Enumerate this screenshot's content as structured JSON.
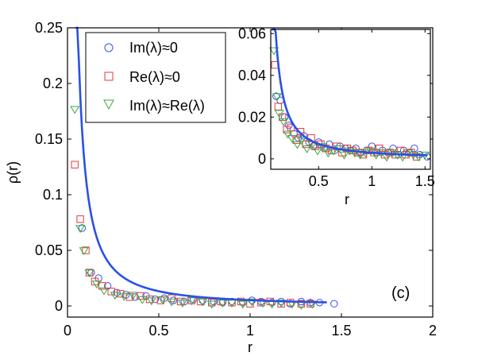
{
  "chart_data": [
    {
      "name": "main",
      "type": "scatter",
      "xlabel": "r",
      "ylabel": "ρ(r)",
      "xlim": [
        0,
        2
      ],
      "ylim": [
        -0.01,
        0.25
      ],
      "xticks": [
        0,
        0.5,
        1,
        1.5,
        2
      ],
      "xtick_labels": [
        "0",
        "0.5",
        "1",
        "1.5",
        "2"
      ],
      "yticks": [
        0,
        0.05,
        0.1,
        0.15,
        0.2,
        0.25
      ],
      "ytick_labels": [
        "0",
        "0.05",
        "0.1",
        "0.15",
        "0.2",
        "0.25"
      ],
      "annotation": "(c)",
      "fit_curve": {
        "name": "fit",
        "color": "#2b50e6",
        "coefficient": 0.0052,
        "exponent": 1.35,
        "x_range": [
          0.045,
          1.42
        ]
      },
      "series": [
        {
          "name": "Im(λ)≈0",
          "marker": "circle",
          "color": "#3a4df0",
          "x": [
            0.08,
            0.13,
            0.17,
            0.22,
            0.27,
            0.32,
            0.37,
            0.43,
            0.48,
            0.53,
            0.58,
            0.64,
            0.69,
            0.74,
            0.8,
            0.85,
            0.9,
            0.96,
            1.01,
            1.06,
            1.12,
            1.17,
            1.22,
            1.28,
            1.33,
            1.38,
            1.46
          ],
          "y": [
            0.07,
            0.03,
            0.025,
            0.018,
            0.012,
            0.01,
            0.008,
            0.009,
            0.006,
            0.007,
            0.005,
            0.004,
            0.006,
            0.005,
            0.004,
            0.003,
            0.004,
            0.003,
            0.005,
            0.004,
            0.003,
            0.004,
            0.002,
            0.004,
            0.003,
            0.003,
            0.002
          ]
        },
        {
          "name": "Re(λ)≈0",
          "marker": "square",
          "color": "#e63a3a",
          "x": [
            0.04,
            0.07,
            0.1,
            0.12,
            0.15,
            0.19,
            0.24,
            0.29,
            0.34,
            0.4,
            0.45,
            0.51,
            0.57,
            0.62,
            0.68,
            0.73,
            0.79,
            0.84,
            0.9,
            0.95,
            1.0,
            1.06,
            1.11,
            1.17,
            1.22,
            1.28,
            1.33
          ],
          "y": [
            0.127,
            0.078,
            0.05,
            0.03,
            0.022,
            0.018,
            0.013,
            0.011,
            0.008,
            0.009,
            0.006,
            0.005,
            0.007,
            0.004,
            0.005,
            0.004,
            0.003,
            0.004,
            0.003,
            0.004,
            0.002,
            0.003,
            0.004,
            0.002,
            0.003,
            0.002,
            0.002
          ]
        },
        {
          "name": "Im(λ)≈Re(λ)",
          "marker": "triangle-down",
          "color": "#3aaa3a",
          "x": [
            0.04,
            0.07,
            0.09,
            0.12,
            0.16,
            0.2,
            0.26,
            0.31,
            0.36,
            0.41,
            0.46,
            0.52,
            0.57,
            0.63,
            0.68,
            0.74,
            0.79,
            0.85,
            0.9,
            0.96,
            1.01,
            1.07,
            1.12,
            1.17,
            1.23,
            1.28,
            1.34
          ],
          "y": [
            0.177,
            0.07,
            0.05,
            0.03,
            0.02,
            0.014,
            0.01,
            0.009,
            0.01,
            0.006,
            0.005,
            0.006,
            0.004,
            0.003,
            0.005,
            0.004,
            0.002,
            0.003,
            0.003,
            0.002,
            0.004,
            0.003,
            0.002,
            0.003,
            0.002,
            0.001,
            0.002
          ]
        }
      ]
    },
    {
      "name": "inset",
      "type": "scatter",
      "xlabel": "r",
      "ylabel": "",
      "xlim": [
        0.05,
        1.55
      ],
      "ylim": [
        -0.005,
        0.062
      ],
      "xticks": [
        0.5,
        1,
        1.5
      ],
      "xtick_labels": [
        "0.5",
        "1",
        "1.5"
      ],
      "yticks": [
        0,
        0.02,
        0.04,
        0.06
      ],
      "ytick_labels": [
        "0",
        "0.02",
        "0.04",
        "0.06"
      ],
      "fit_curve": {
        "name": "fit",
        "color": "#2b50e6",
        "coefficient": 0.0029,
        "exponent": 1.3,
        "x_range": [
          0.06,
          1.52
        ]
      },
      "series": [
        {
          "name": "Im(λ)≈0",
          "marker": "circle",
          "color": "#3a4df0",
          "x": [
            0.1,
            0.14,
            0.18,
            0.22,
            0.27,
            0.31,
            0.36,
            0.41,
            0.45,
            0.5,
            0.55,
            0.6,
            0.65,
            0.7,
            0.75,
            0.8,
            0.85,
            0.9,
            0.95,
            1.0,
            1.05,
            1.1,
            1.15,
            1.2,
            1.25,
            1.3,
            1.35,
            1.4,
            1.45,
            1.52
          ],
          "y": [
            0.03,
            0.028,
            0.02,
            0.016,
            0.012,
            0.01,
            0.011,
            0.008,
            0.006,
            0.008,
            0.005,
            0.007,
            0.004,
            0.006,
            0.005,
            0.004,
            0.005,
            0.003,
            0.004,
            0.006,
            0.003,
            0.004,
            0.003,
            0.005,
            0.002,
            0.004,
            0.003,
            0.005,
            0.002,
            0.001
          ]
        },
        {
          "name": "Re(λ)≈0",
          "marker": "square",
          "color": "#e63a3a",
          "x": [
            0.09,
            0.12,
            0.16,
            0.2,
            0.24,
            0.29,
            0.33,
            0.38,
            0.43,
            0.47,
            0.52,
            0.57,
            0.62,
            0.67,
            0.72,
            0.77,
            0.82,
            0.87,
            0.92,
            0.97,
            1.02,
            1.07,
            1.12,
            1.17,
            1.22,
            1.27,
            1.32,
            1.37,
            1.42
          ],
          "y": [
            0.045,
            0.025,
            0.02,
            0.014,
            0.015,
            0.009,
            0.013,
            0.007,
            0.01,
            0.006,
            0.007,
            0.005,
            0.004,
            0.006,
            0.003,
            0.005,
            0.004,
            0.003,
            0.002,
            0.004,
            0.003,
            0.005,
            0.002,
            0.003,
            0.002,
            0.004,
            0.002,
            0.003,
            0.001
          ]
        },
        {
          "name": "Im(λ)≈Re(λ)",
          "marker": "triangle-down",
          "color": "#3aaa3a",
          "x": [
            0.08,
            0.11,
            0.13,
            0.17,
            0.21,
            0.25,
            0.3,
            0.34,
            0.39,
            0.44,
            0.49,
            0.54,
            0.59,
            0.64,
            0.69,
            0.74,
            0.79,
            0.84,
            0.89,
            0.94,
            0.99,
            1.04,
            1.09,
            1.14,
            1.19,
            1.24,
            1.29,
            1.34,
            1.39,
            1.44,
            1.5
          ],
          "y": [
            0.052,
            0.03,
            0.022,
            0.018,
            0.012,
            0.01,
            0.007,
            0.009,
            0.005,
            0.007,
            0.004,
            0.006,
            0.003,
            0.004,
            0.005,
            0.002,
            0.004,
            0.003,
            0.002,
            0.003,
            0.004,
            0.002,
            0.003,
            0.001,
            0.003,
            0.002,
            0.001,
            0.003,
            0.002,
            0.001,
            0.002
          ]
        }
      ]
    }
  ]
}
